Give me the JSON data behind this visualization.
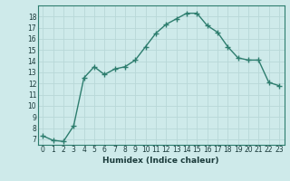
{
  "x": [
    0,
    1,
    2,
    3,
    4,
    5,
    6,
    7,
    8,
    9,
    10,
    11,
    12,
    13,
    14,
    15,
    16,
    17,
    18,
    19,
    20,
    21,
    22,
    23
  ],
  "y": [
    7.3,
    6.9,
    6.8,
    8.2,
    12.5,
    13.5,
    12.8,
    13.3,
    13.5,
    14.1,
    15.3,
    16.5,
    17.3,
    17.8,
    18.3,
    18.3,
    17.2,
    16.6,
    15.3,
    14.3,
    14.1,
    14.1,
    12.1,
    11.8
  ],
  "line_color": "#2d7d6e",
  "marker_color": "#2d7d6e",
  "bg_color": "#ceeaea",
  "grid_color": "#b8d8d8",
  "xlabel": "Humidex (Indice chaleur)",
  "xlim": [
    -0.5,
    23.5
  ],
  "ylim": [
    6.5,
    19
  ],
  "yticks": [
    7,
    8,
    9,
    10,
    11,
    12,
    13,
    14,
    15,
    16,
    17,
    18
  ],
  "xtick_labels": [
    "0",
    "1",
    "2",
    "3",
    "4",
    "5",
    "6",
    "7",
    "8",
    "9",
    "10",
    "11",
    "12",
    "13",
    "14",
    "15",
    "16",
    "17",
    "18",
    "19",
    "20",
    "21",
    "22",
    "23"
  ]
}
